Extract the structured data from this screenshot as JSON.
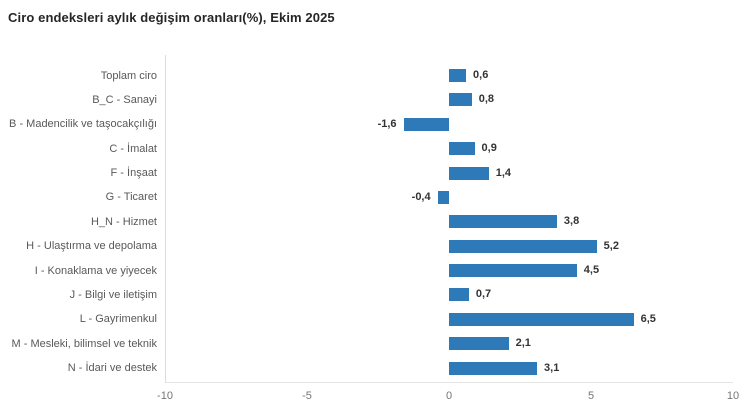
{
  "title": "Ciro endeksleri aylık değişim oranları(%), Ekim 2025",
  "chart_data": {
    "type": "bar",
    "orientation": "horizontal",
    "title": "Ciro endeksleri aylık değişim oranları(%), Ekim 2025",
    "categories": [
      "Toplam ciro",
      "B_C - Sanayi",
      "B - Madencilik ve taşocakçılığı",
      "C - İmalat",
      "F - İnşaat",
      "G - Ticaret",
      "H_N - Hizmet",
      "H - Ulaştırma ve depolama",
      "I - Konaklama ve yiyecek",
      "J - Bilgi ve iletişim",
      "L - Gayrimenkul",
      "M - Mesleki, bilimsel ve teknik",
      "N - İdari ve destek"
    ],
    "values": [
      0.6,
      0.8,
      -1.6,
      0.9,
      1.4,
      -0.4,
      3.8,
      5.2,
      4.5,
      0.7,
      6.5,
      2.1,
      3.1
    ],
    "value_labels": [
      "0,6",
      "0,8",
      "-1,6",
      "0,9",
      "1,4",
      "-0,4",
      "3,8",
      "5,2",
      "4,5",
      "0,7",
      "6,5",
      "2,1",
      "3,1"
    ],
    "xlabel": "",
    "ylabel": "",
    "xlim": [
      -10,
      10
    ],
    "x_ticks": [
      -10,
      -5,
      0,
      5,
      10
    ],
    "x_tick_labels": [
      "-10",
      "-5",
      "0",
      "5",
      "10"
    ],
    "grid": false,
    "legend_position": "none",
    "data_labels": true
  },
  "colors": {
    "bar": "#2e79b8",
    "title": "#262626",
    "category_label": "#595959",
    "value_label": "#333333",
    "axis_line": "#dcdcdc",
    "tick_label": "#757575",
    "background": "#ffffff"
  }
}
